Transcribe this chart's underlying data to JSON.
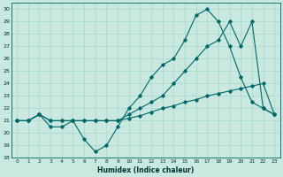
{
  "title": "",
  "xlabel": "Humidex (Indice chaleur)",
  "bg_color": "#c8e8e0",
  "grid_color": "#a8d8d0",
  "line_color": "#006868",
  "xlim": [
    -0.5,
    23.5
  ],
  "ylim": [
    18,
    30.5
  ],
  "yticks": [
    18,
    19,
    20,
    21,
    22,
    23,
    24,
    25,
    26,
    27,
    28,
    29,
    30
  ],
  "xticks": [
    0,
    1,
    2,
    3,
    4,
    5,
    6,
    7,
    8,
    9,
    10,
    11,
    12,
    13,
    14,
    15,
    16,
    17,
    18,
    19,
    20,
    21,
    22,
    23
  ],
  "series": [
    {
      "x": [
        0,
        1,
        2,
        3,
        4,
        5,
        6,
        7,
        8,
        9,
        10,
        11,
        12,
        13,
        14,
        15,
        16,
        17,
        18,
        19,
        20,
        21,
        22,
        23
      ],
      "y": [
        21,
        21,
        21.5,
        20.5,
        20.5,
        21,
        19.5,
        18.5,
        19,
        20.5,
        22,
        23,
        24.5,
        25.5,
        26,
        27.5,
        29.5,
        30,
        29,
        27,
        24.5,
        22.5,
        22,
        21.5
      ]
    },
    {
      "x": [
        0,
        1,
        2,
        3,
        4,
        5,
        6,
        7,
        8,
        9,
        10,
        11,
        12,
        13,
        14,
        15,
        16,
        17,
        18,
        19,
        20,
        21,
        22,
        23
      ],
      "y": [
        21,
        21,
        21.5,
        21,
        21,
        21,
        21,
        21,
        21,
        21,
        21.2,
        21.4,
        21.7,
        22,
        22.2,
        22.5,
        22.7,
        23,
        23.2,
        23.4,
        23.6,
        23.8,
        24,
        21.5
      ]
    },
    {
      "x": [
        0,
        1,
        2,
        3,
        4,
        5,
        6,
        7,
        8,
        9,
        10,
        11,
        12,
        13,
        14,
        15,
        16,
        17,
        18,
        19,
        20,
        21,
        22,
        23
      ],
      "y": [
        21,
        21,
        21.5,
        21,
        21,
        21,
        21,
        21,
        21,
        21,
        21.5,
        22,
        22.5,
        23,
        24,
        25,
        26,
        27,
        27.5,
        29,
        27,
        29,
        22,
        21.5
      ]
    }
  ]
}
